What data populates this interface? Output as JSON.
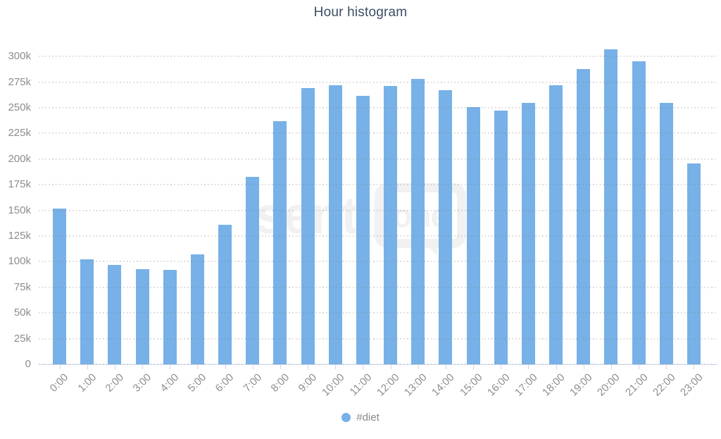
{
  "title": "Hour histogram",
  "legend": {
    "label": "#diet",
    "marker_color": "#77b1e8"
  },
  "watermark": {
    "prefix": "senti",
    "boxed": "one"
  },
  "colors": {
    "bar": "#77b1e8",
    "axis_line": "#ccd6eb",
    "grid_dot": "#c9c9c9",
    "title_text": "#3e4d64",
    "axis_label_text": "#8d8d8d",
    "legend_text": "#8a8a8a",
    "watermark_text": "#f1f1f1",
    "background": "#ffffff"
  },
  "chart_data": {
    "type": "bar",
    "title": "Hour histogram",
    "xlabel": "",
    "ylabel": "",
    "values_unit": "thousands",
    "ylim": [
      0,
      320
    ],
    "grid": true,
    "legend_position": "bottom-center",
    "categories": [
      "0:00",
      "1:00",
      "2:00",
      "3:00",
      "4:00",
      "5:00",
      "6:00",
      "7:00",
      "8:00",
      "9:00",
      "10:00",
      "11:00",
      "12:00",
      "13:00",
      "14:00",
      "15:00",
      "16:00",
      "17:00",
      "18:00",
      "19:00",
      "20:00",
      "21:00",
      "22:00",
      "23:00"
    ],
    "series": [
      {
        "name": "#diet",
        "values": [
          152,
          102,
          97,
          93,
          92,
          107,
          136,
          183,
          237,
          269,
          272,
          262,
          271,
          278,
          267,
          251,
          247,
          255,
          272,
          288,
          307,
          295,
          255,
          196
        ]
      }
    ],
    "yticks": [
      {
        "value": 0,
        "label": "0"
      },
      {
        "value": 25,
        "label": "25k"
      },
      {
        "value": 50,
        "label": "50k"
      },
      {
        "value": 75,
        "label": "75k"
      },
      {
        "value": 100,
        "label": "100k"
      },
      {
        "value": 125,
        "label": "125k"
      },
      {
        "value": 150,
        "label": "150k"
      },
      {
        "value": 175,
        "label": "175k"
      },
      {
        "value": 200,
        "label": "200k"
      },
      {
        "value": 225,
        "label": "225k"
      },
      {
        "value": 250,
        "label": "250k"
      },
      {
        "value": 275,
        "label": "275k"
      },
      {
        "value": 300,
        "label": "300k"
      }
    ]
  }
}
